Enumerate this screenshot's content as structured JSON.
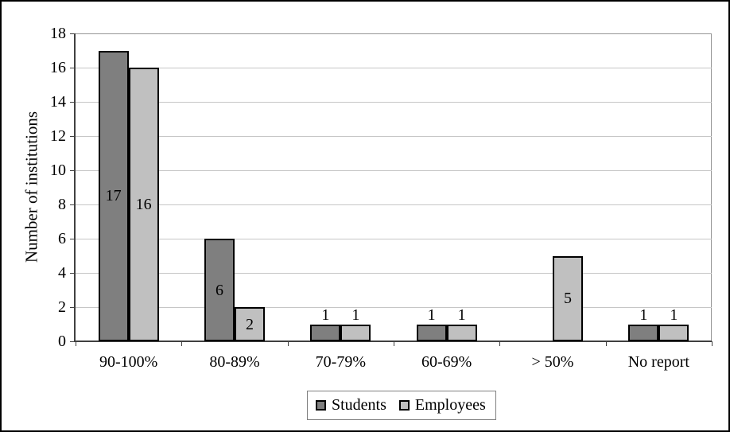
{
  "chart_data": {
    "type": "bar",
    "title": "",
    "xlabel": "",
    "ylabel": "Number of institutions",
    "categories": [
      "90-100%",
      "80-89%",
      "70-79%",
      "60-69%",
      "> 50%",
      "No report"
    ],
    "series": [
      {
        "name": "Students",
        "color": "#7f7f7f",
        "values": [
          17,
          6,
          1,
          1,
          0,
          1
        ]
      },
      {
        "name": "Employees",
        "color": "#c0c0c0",
        "values": [
          16,
          2,
          1,
          1,
          5,
          1
        ]
      }
    ],
    "ylim": [
      0,
      18
    ],
    "ytick_step": 2,
    "grid": true,
    "legend_position": "bottom",
    "colors": {
      "gridline": "#c6c6c6",
      "axis": "#404040",
      "plot_border": "#969696",
      "bar_border": "#000000",
      "frame_border": "#000000",
      "background": "#ffffff"
    }
  }
}
